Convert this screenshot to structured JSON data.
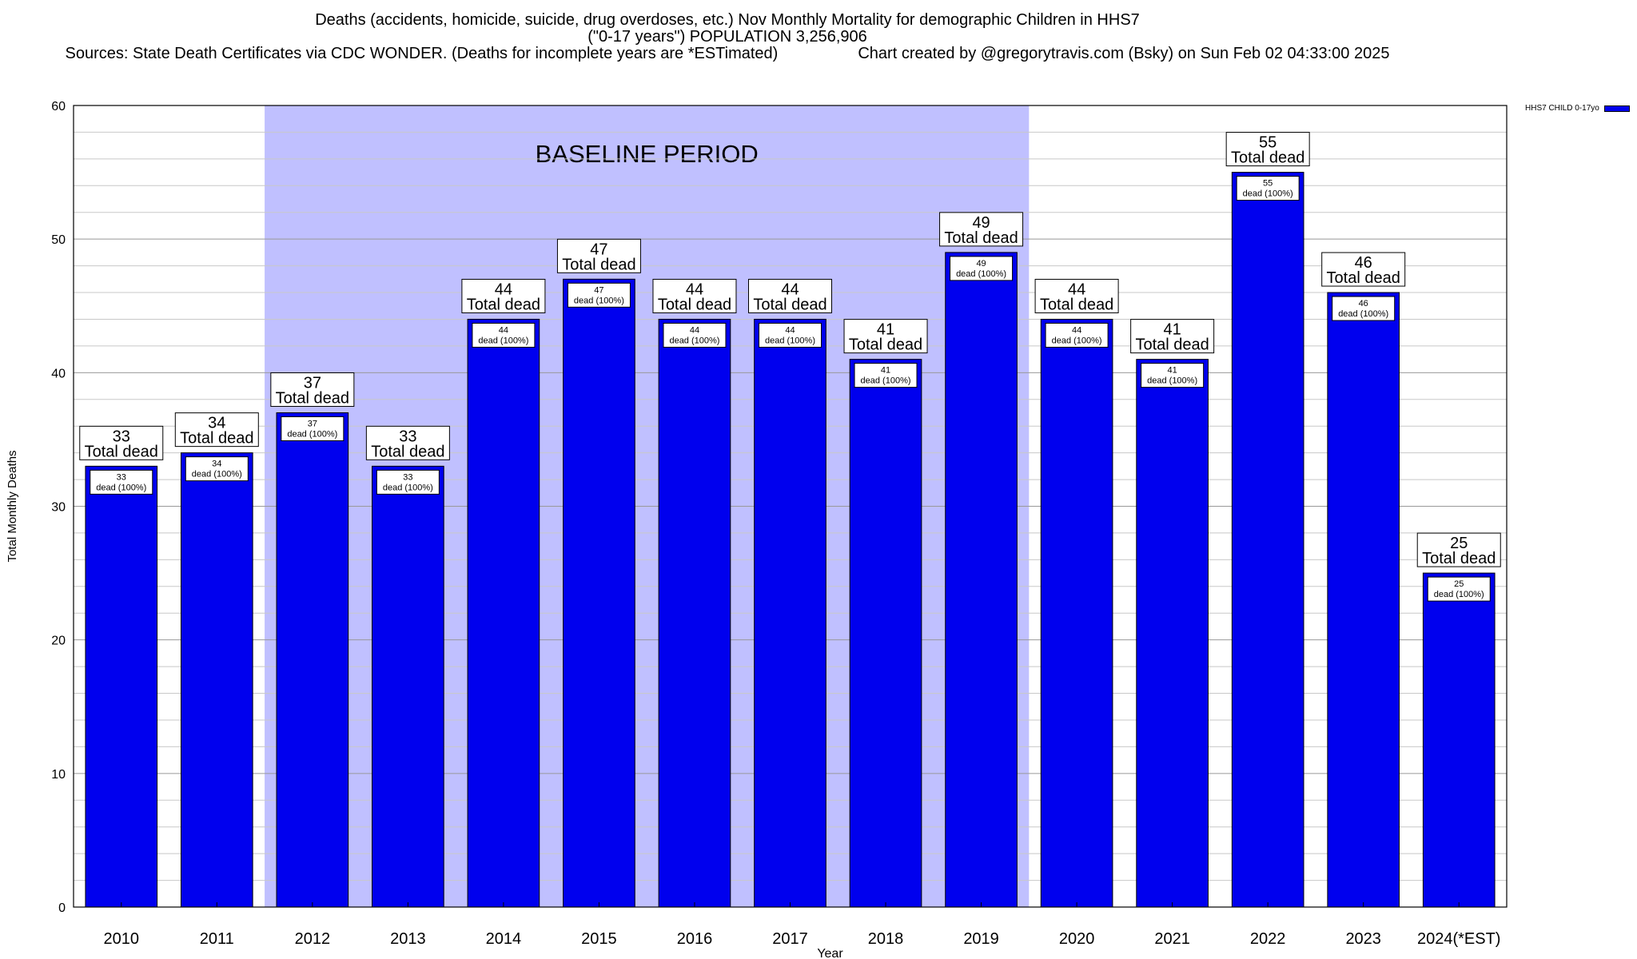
{
  "header": {
    "line1": "Deaths (accidents, homicide, suicide, drug overdoses, etc.) Nov Monthly Mortality for demographic Children in HHS7",
    "line2": "(\"0-17 years\") POPULATION 3,256,906",
    "line3": "Sources: State Death Certificates via CDC WONDER. (Deaths for incomplete years are *ESTimated)                  Chart created by @gregorytravis.com (Bsky) on Sun Feb 02 04:33:00 2025"
  },
  "legend": {
    "label": "HHS7 CHILD 0-17yo"
  },
  "annotations": {
    "baseline": "BASELINE PERIOD"
  },
  "chart_data": {
    "type": "bar",
    "title": "Deaths (accidents, homicide, suicide, drug overdoses, etc.) Nov Monthly Mortality for demographic Children in HHS7",
    "xlabel": "Year",
    "ylabel": "Total Monthly Deaths",
    "ylim": [
      0,
      60
    ],
    "yticks": [
      0,
      10,
      20,
      30,
      40,
      50,
      60
    ],
    "grid": true,
    "legend_position": "top-right",
    "categories": [
      "2010",
      "2011",
      "2012",
      "2013",
      "2014",
      "2015",
      "2016",
      "2017",
      "2018",
      "2019",
      "2020",
      "2021",
      "2022",
      "2023",
      "2024(*EST)"
    ],
    "series": [
      {
        "name": "HHS7 CHILD 0-17yo",
        "color": "#0000ee",
        "values": [
          33,
          34,
          37,
          33,
          44,
          47,
          44,
          44,
          41,
          49,
          44,
          41,
          55,
          46,
          25
        ]
      }
    ],
    "label_total_text": "Total dead",
    "label_inner_text": "dead (100%)",
    "baseline_period": {
      "start": "2012",
      "end": "2019",
      "label": "BASELINE PERIOD",
      "color": "#c0c0ff"
    }
  }
}
